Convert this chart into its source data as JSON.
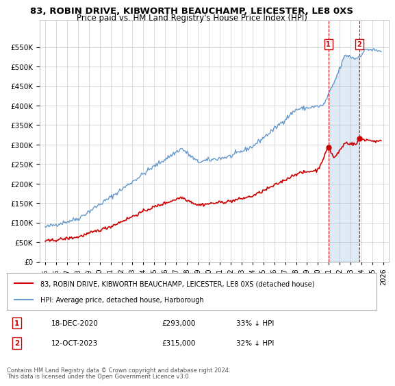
{
  "title": "83, ROBIN DRIVE, KIBWORTH BEAUCHAMP, LEICESTER, LE8 0XS",
  "subtitle": "Price paid vs. HM Land Registry's House Price Index (HPI)",
  "legend_line1": "83, ROBIN DRIVE, KIBWORTH BEAUCHAMP, LEICESTER, LE8 0XS (detached house)",
  "legend_line2": "HPI: Average price, detached house, Harborough",
  "sale1_label": "1",
  "sale1_date": "18-DEC-2020",
  "sale1_price": "£293,000",
  "sale1_note": "33% ↓ HPI",
  "sale2_label": "2",
  "sale2_date": "12-OCT-2023",
  "sale2_price": "£315,000",
  "sale2_note": "32% ↓ HPI",
  "footnote1": "Contains HM Land Registry data © Crown copyright and database right 2024.",
  "footnote2": "This data is licensed under the Open Government Licence v3.0.",
  "hpi_color": "#6699cc",
  "sale_color": "#cc0000",
  "ylim_min": 0,
  "ylim_max": 600000,
  "yticks": [
    0,
    50000,
    100000,
    150000,
    200000,
    250000,
    300000,
    350000,
    400000,
    450000,
    500000,
    550000
  ],
  "xlim_min": 1994.5,
  "xlim_max": 2026.5,
  "sale1_x": 2020.96,
  "sale1_y": 293000,
  "sale2_x": 2023.79,
  "sale2_y": 315000,
  "background_color": "#ffffff",
  "plot_bg_color": "#ffffff",
  "grid_color": "#cccccc"
}
